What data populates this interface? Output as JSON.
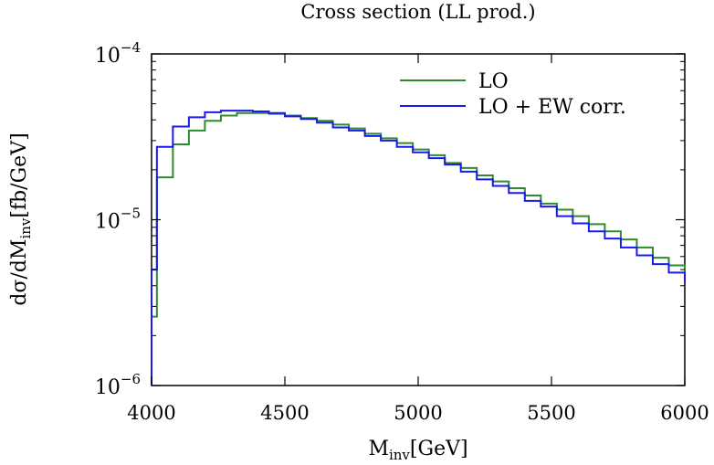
{
  "chart_data": {
    "type": "line",
    "step": true,
    "title": "Cross section (LL prod.)",
    "xlabel": {
      "main": "M",
      "sub": "inv",
      "rest": "[GeV]"
    },
    "ylabel": {
      "main": "dσ/dM",
      "sub": "inv",
      "rest": "[fb/GeV]"
    },
    "xlim": [
      4000,
      6000
    ],
    "ylim": [
      1e-06,
      0.0001
    ],
    "y_scale": "log",
    "grid": false,
    "legend_position": "top-right",
    "x_ticks": [
      {
        "value": 4000,
        "label": "4000"
      },
      {
        "value": 4500,
        "label": "4500"
      },
      {
        "value": 5000,
        "label": "5000"
      },
      {
        "value": 5500,
        "label": "5500"
      },
      {
        "value": 6000,
        "label": "6000"
      }
    ],
    "y_ticks": [
      {
        "value": 1e-06,
        "base": "10",
        "exp": "−6"
      },
      {
        "value": 1e-05,
        "base": "10",
        "exp": "−5"
      },
      {
        "value": 0.0001,
        "base": "10",
        "exp": "−4"
      }
    ],
    "bin_edges": [
      4000,
      4020,
      4080,
      4140,
      4200,
      4260,
      4320,
      4380,
      4440,
      4500,
      4560,
      4620,
      4680,
      4740,
      4800,
      4860,
      4920,
      4980,
      5040,
      5100,
      5160,
      5220,
      5280,
      5340,
      5400,
      5460,
      5520,
      5580,
      5640,
      5700,
      5760,
      5820,
      5880,
      5940,
      6000
    ],
    "series": [
      {
        "name": "LO",
        "color": "#2e8b2e",
        "values": [
          2.6e-06,
          1.8e-05,
          2.85e-05,
          3.45e-05,
          3.95e-05,
          4.25e-05,
          4.4e-05,
          4.4e-05,
          4.35e-05,
          4.25e-05,
          4.1e-05,
          3.95e-05,
          3.75e-05,
          3.55e-05,
          3.3e-05,
          3.1e-05,
          2.9e-05,
          2.65e-05,
          2.45e-05,
          2.2e-05,
          2.05e-05,
          1.85e-05,
          1.7e-05,
          1.55e-05,
          1.4e-05,
          1.25e-05,
          1.15e-05,
          1.05e-05,
          9.4e-06,
          8.5e-06,
          7.6e-06,
          6.8e-06,
          5.9e-06,
          5.3e-06,
          4.7e-06
        ]
      },
      {
        "name": "LO + EW corr.",
        "color": "#1a1aee",
        "values": [
          5e-06,
          2.75e-05,
          3.65e-05,
          4.15e-05,
          4.45e-05,
          4.55e-05,
          4.55e-05,
          4.5e-05,
          4.4e-05,
          4.2e-05,
          4.05e-05,
          3.85e-05,
          3.6e-05,
          3.45e-05,
          3.2e-05,
          3e-05,
          2.75e-05,
          2.55e-05,
          2.35e-05,
          2.15e-05,
          1.95e-05,
          1.75e-05,
          1.6e-05,
          1.45e-05,
          1.3e-05,
          1.2e-05,
          1.05e-05,
          9.5e-06,
          8.5e-06,
          7.7e-06,
          6.8e-06,
          6.1e-06,
          5.4e-06,
          4.8e-06,
          4.2e-06
        ]
      }
    ]
  }
}
